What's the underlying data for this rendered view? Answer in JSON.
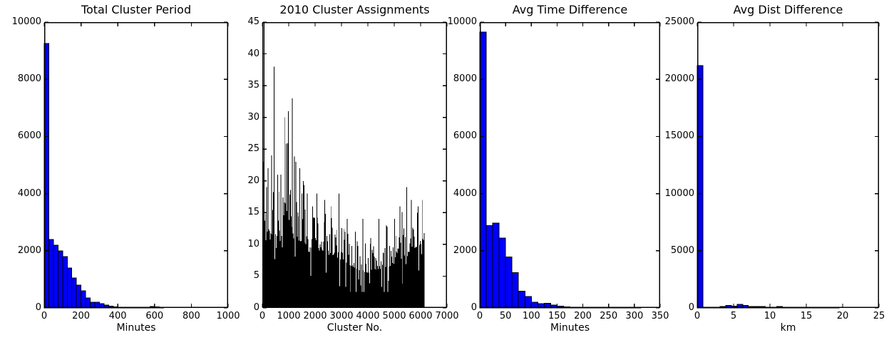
{
  "figure": {
    "background": "#ffffff",
    "text_color": "#000000",
    "spine_color": "#000000"
  },
  "chart_data": [
    {
      "id": "total-cluster-period",
      "type": "bar",
      "title": "Total Cluster Period",
      "xlabel": "Minutes",
      "ylabel": "",
      "x_range": [
        0,
        1000
      ],
      "y_range": [
        0,
        10000
      ],
      "x_ticks": [
        0,
        200,
        400,
        600,
        800,
        1000
      ],
      "y_ticks": [
        0,
        2000,
        4000,
        6000,
        8000,
        10000
      ],
      "grid": false,
      "bar_color": "#0000ff",
      "edge_color": "#000000",
      "bins": {
        "start": 0,
        "width": 25,
        "values": [
          9250,
          2400,
          2200,
          2000,
          1800,
          1400,
          1050,
          800,
          600,
          350,
          200,
          200,
          150,
          100,
          60,
          40,
          30,
          25,
          20,
          15,
          15,
          20,
          25,
          45,
          40,
          20,
          0,
          0,
          0,
          0,
          0,
          0,
          0,
          0,
          0,
          0,
          0,
          0,
          0,
          0
        ]
      }
    },
    {
      "id": "cluster-assignments",
      "type": "bar",
      "style": "dense-black-histogram",
      "title": "2010 Cluster Assignments",
      "xlabel": "Cluster No.",
      "ylabel": "",
      "x_range": [
        0,
        7000
      ],
      "y_range": [
        0,
        45
      ],
      "x_ticks": [
        0,
        1000,
        2000,
        3000,
        4000,
        5000,
        6000,
        7000
      ],
      "y_ticks": [
        0,
        5,
        10,
        15,
        20,
        25,
        30,
        35,
        40,
        45
      ],
      "grid": false,
      "bar_color": "#000000",
      "edge_color": "#000000",
      "dense": {
        "n_bars": 240,
        "x_max": 6150,
        "seed": 7,
        "base_profile": [
          [
            0,
            12
          ],
          [
            400,
            11.5
          ],
          [
            800,
            11
          ],
          [
            1200,
            11
          ],
          [
            1600,
            10
          ],
          [
            2000,
            9
          ],
          [
            2400,
            8.5
          ],
          [
            2800,
            8
          ],
          [
            3200,
            7
          ],
          [
            3600,
            6
          ],
          [
            4000,
            5.5
          ],
          [
            4400,
            6
          ],
          [
            4800,
            6.5
          ],
          [
            5200,
            7.5
          ],
          [
            5600,
            9
          ],
          [
            6000,
            10
          ],
          [
            6150,
            11
          ]
        ],
        "max_profile": [
          [
            0,
            24
          ],
          [
            400,
            30
          ],
          [
            800,
            28
          ],
          [
            1200,
            26
          ],
          [
            1600,
            20
          ],
          [
            2000,
            18
          ],
          [
            2400,
            16
          ],
          [
            2800,
            15
          ],
          [
            3200,
            13
          ],
          [
            3600,
            12
          ],
          [
            4000,
            11
          ],
          [
            4400,
            12
          ],
          [
            4800,
            13
          ],
          [
            5200,
            15
          ],
          [
            5600,
            16
          ],
          [
            6000,
            16
          ],
          [
            6150,
            12
          ]
        ],
        "spikes": [
          [
            30,
            23
          ],
          [
            60,
            45
          ],
          [
            200,
            22
          ],
          [
            330,
            24
          ],
          [
            430,
            38
          ],
          [
            560,
            21
          ],
          [
            700,
            21
          ],
          [
            840,
            30
          ],
          [
            980,
            31
          ],
          [
            1120,
            33
          ],
          [
            1250,
            23
          ],
          [
            1400,
            22
          ],
          [
            1550,
            20
          ],
          [
            1700,
            18
          ],
          [
            1900,
            16
          ],
          [
            2050,
            18
          ],
          [
            2350,
            17
          ],
          [
            2600,
            16
          ],
          [
            2900,
            18
          ],
          [
            3200,
            14
          ],
          [
            3500,
            12
          ],
          [
            3800,
            14
          ],
          [
            4100,
            11
          ],
          [
            4400,
            14
          ],
          [
            4700,
            13
          ],
          [
            5000,
            14
          ],
          [
            5200,
            16
          ],
          [
            5450,
            19
          ],
          [
            5650,
            17
          ],
          [
            5900,
            16
          ],
          [
            6050,
            17
          ],
          [
            6140,
            12
          ]
        ]
      }
    },
    {
      "id": "avg-time-difference",
      "type": "bar",
      "title": "Avg Time Difference",
      "xlabel": "Minutes",
      "ylabel": "",
      "x_range": [
        0,
        350
      ],
      "y_range": [
        0,
        10000
      ],
      "x_ticks": [
        0,
        50,
        100,
        150,
        200,
        250,
        300,
        350
      ],
      "y_ticks": [
        0,
        2000,
        4000,
        6000,
        8000,
        10000
      ],
      "grid": false,
      "bar_color": "#0000ff",
      "edge_color": "#000000",
      "bins": {
        "start": 0,
        "width": 12.5,
        "values": [
          9650,
          2880,
          2970,
          2450,
          1780,
          1230,
          590,
          400,
          195,
          145,
          160,
          100,
          60,
          35,
          25,
          18,
          10,
          8,
          5,
          18,
          4,
          3,
          2,
          1,
          1,
          0,
          0,
          0
        ]
      }
    },
    {
      "id": "avg-dist-difference",
      "type": "bar",
      "title": "Avg Dist Difference",
      "xlabel": "km",
      "ylabel": "",
      "x_range": [
        0,
        25
      ],
      "y_range": [
        0,
        25000
      ],
      "x_ticks": [
        0,
        5,
        10,
        15,
        20,
        25
      ],
      "y_ticks": [
        0,
        5000,
        10000,
        15000,
        20000,
        25000
      ],
      "grid": false,
      "bar_color": "#0000ff",
      "edge_color": "#000000",
      "bins": {
        "start": 0,
        "width": 0.78125,
        "values": [
          21200,
          20,
          50,
          75,
          120,
          220,
          155,
          310,
          220,
          125,
          125,
          125,
          60,
          40,
          110,
          50,
          40,
          35,
          30,
          28,
          25,
          22,
          20,
          18,
          15,
          0,
          0,
          0,
          0,
          0,
          0,
          0
        ]
      }
    }
  ]
}
